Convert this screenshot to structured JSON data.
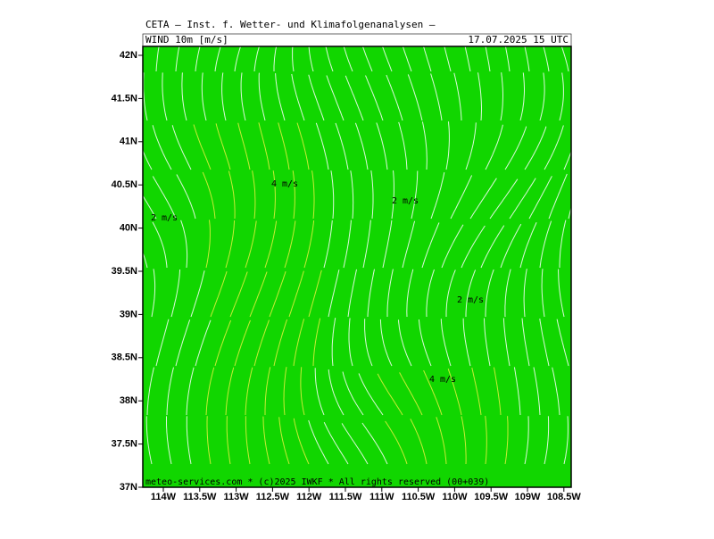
{
  "header": {
    "line1": "CETA — Inst. f. Wetter- und Klimafolgenanalysen —",
    "field": "WIND 10m [m/s]",
    "valid": "17.07.2025 15 UTC"
  },
  "footer": "meteo-services.com * (c)2025 IWKF * All rights reserved (00+039)",
  "lat_labels": [
    "42N",
    "41.5N",
    "41N",
    "40.5N",
    "40N",
    "39.5N",
    "39N",
    "38.5N",
    "38N",
    "37.5N",
    "37N"
  ],
  "lon_labels": [
    "114W",
    "113.5W",
    "113W",
    "112.5W",
    "112W",
    "111.5W",
    "111W",
    "110.5W",
    "110W",
    "109.5W",
    "109W",
    "108.5W"
  ],
  "annotations": [
    "4 m/s",
    "2 m/s",
    "2 m/s",
    "2 m/s",
    "4 m/s"
  ]
}
